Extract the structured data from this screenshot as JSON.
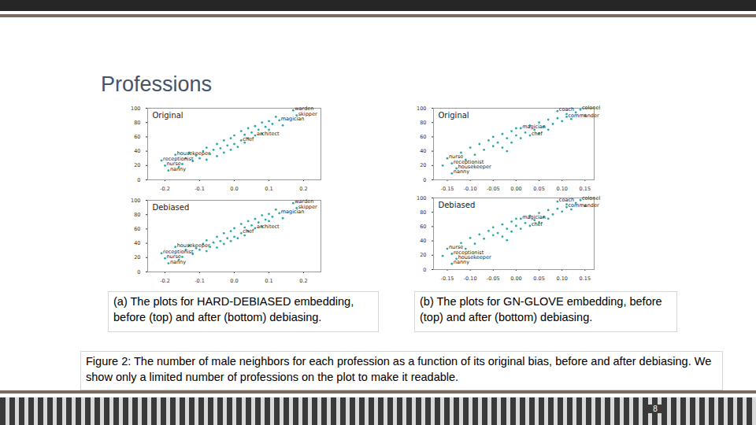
{
  "title": "Professions",
  "panel_captions": [
    "(a) The plots for HARD-DEBIASED embedding, before (top) and after (bottom) debiasing.",
    "(b) The plots for GN-GLOVE embedding, before (top) and after (bottom) debiasing."
  ],
  "caption": "Figure 2: The number of male neighbors for each profession as a function of its original bias, before and after debiasing. We show only a limited number of professions on the plot to make it readable.",
  "page_number": 8,
  "chart_data": [
    {
      "type": "scatter",
      "title": "Original",
      "color": "#2aa9a6",
      "marker": "circle",
      "xlim": [
        -0.25,
        0.25
      ],
      "xticks": [
        -0.2,
        -0.1,
        {
          "value": 0,
          "label": "0.0"
        },
        0.1,
        0.2
      ],
      "ylim": [
        0,
        100
      ],
      "yticks": [
        0,
        20,
        40,
        60,
        80,
        100
      ],
      "x": [
        -0.21,
        -0.2,
        -0.19,
        -0.17,
        -0.15,
        -0.14,
        -0.13,
        -0.12,
        -0.11,
        -0.1,
        -0.09,
        -0.08,
        -0.08,
        -0.07,
        -0.06,
        -0.05,
        -0.05,
        -0.04,
        -0.03,
        -0.03,
        -0.02,
        -0.01,
        -0.01,
        0.0,
        0.0,
        0.01,
        0.02,
        0.02,
        0.03,
        0.03,
        0.04,
        0.04,
        0.05,
        0.06,
        0.06,
        0.07,
        0.08,
        0.08,
        0.09,
        0.1,
        0.1,
        0.11,
        0.12,
        0.13,
        0.14,
        0.17,
        0.18,
        -0.16
      ],
      "values": [
        27,
        20,
        13,
        35,
        22,
        30,
        38,
        26,
        34,
        30,
        40,
        28,
        45,
        36,
        42,
        33,
        50,
        44,
        38,
        55,
        48,
        42,
        58,
        50,
        62,
        46,
        55,
        68,
        52,
        63,
        58,
        72,
        66,
        62,
        75,
        70,
        64,
        80,
        74,
        82,
        70,
        78,
        88,
        83,
        76,
        97,
        90,
        18
      ],
      "labels": [
        "receptionist",
        "nurse",
        "nanny",
        "housekeeper",
        null,
        null,
        null,
        null,
        null,
        null,
        null,
        null,
        null,
        null,
        null,
        null,
        null,
        null,
        null,
        null,
        null,
        null,
        null,
        null,
        null,
        null,
        "chef",
        null,
        null,
        null,
        null,
        null,
        null,
        "architect",
        null,
        null,
        null,
        null,
        null,
        null,
        null,
        null,
        null,
        "magician",
        null,
        "warden",
        "skipper",
        null
      ]
    },
    {
      "type": "scatter",
      "title": "Debiased",
      "color": "#2aa9a6",
      "marker": "circle",
      "xlim": [
        -0.25,
        0.25
      ],
      "xticks": [
        -0.2,
        -0.1,
        {
          "value": 0,
          "label": "0.0"
        },
        0.1,
        0.2
      ],
      "ylim": [
        0,
        100
      ],
      "yticks": [
        0,
        20,
        40,
        60,
        80,
        100
      ],
      "x": [
        -0.21,
        -0.2,
        -0.19,
        -0.17,
        -0.15,
        -0.14,
        -0.13,
        -0.12,
        -0.11,
        -0.1,
        -0.09,
        -0.08,
        -0.08,
        -0.07,
        -0.06,
        -0.05,
        -0.05,
        -0.04,
        -0.03,
        -0.03,
        -0.02,
        -0.01,
        -0.01,
        0.0,
        0.0,
        0.01,
        0.02,
        0.02,
        0.03,
        0.03,
        0.04,
        0.04,
        0.05,
        0.06,
        0.06,
        0.07,
        0.08,
        0.08,
        0.09,
        0.1,
        0.1,
        0.11,
        0.12,
        0.13,
        0.14,
        0.17,
        0.18,
        -0.16
      ],
      "values": [
        26,
        19,
        12,
        35,
        21,
        31,
        37,
        25,
        33,
        31,
        39,
        29,
        44,
        35,
        41,
        34,
        49,
        43,
        39,
        54,
        47,
        43,
        57,
        49,
        61,
        47,
        54,
        67,
        51,
        62,
        57,
        71,
        65,
        61,
        74,
        69,
        63,
        79,
        73,
        81,
        71,
        77,
        87,
        82,
        75,
        96,
        89,
        17
      ],
      "labels": [
        "receptionist",
        "nurse",
        "nanny",
        "housekeeper",
        null,
        null,
        null,
        null,
        null,
        null,
        null,
        null,
        null,
        null,
        null,
        null,
        null,
        null,
        null,
        null,
        null,
        null,
        null,
        null,
        null,
        null,
        "chef",
        null,
        null,
        null,
        null,
        null,
        null,
        "architect",
        null,
        null,
        null,
        null,
        null,
        null,
        null,
        null,
        null,
        "magician",
        null,
        "warden",
        "skipper",
        null
      ]
    },
    {
      "type": "scatter",
      "title": "Original",
      "color": "#2aa9a6",
      "marker": "circle",
      "xlim": [
        -0.18,
        0.17
      ],
      "xticks": [
        -0.15,
        {
          "value": -0.1,
          "label": "-0.10"
        },
        -0.05,
        {
          "value": 0,
          "label": "0.00"
        },
        0.05,
        {
          "value": 0.1,
          "label": "0.10"
        },
        0.15
      ],
      "ylim": [
        0,
        100
      ],
      "yticks": [
        0,
        20,
        40,
        60,
        80,
        100
      ],
      "x": [
        -0.15,
        -0.14,
        -0.13,
        -0.14,
        -0.12,
        -0.11,
        -0.1,
        -0.09,
        -0.08,
        -0.07,
        -0.06,
        -0.05,
        -0.05,
        -0.04,
        -0.03,
        -0.03,
        -0.02,
        -0.01,
        -0.01,
        0.0,
        0.0,
        0.01,
        0.01,
        0.02,
        0.03,
        0.03,
        0.04,
        0.05,
        0.05,
        0.06,
        0.07,
        0.07,
        0.08,
        0.09,
        0.09,
        0.1,
        0.11,
        0.11,
        0.12,
        0.13,
        0.14,
        0.15,
        -0.16,
        -0.02
      ],
      "values": [
        30,
        23,
        16,
        9,
        38,
        28,
        45,
        35,
        50,
        42,
        55,
        47,
        60,
        52,
        64,
        45,
        58,
        68,
        52,
        62,
        72,
        72,
        58,
        66,
        62,
        76,
        70,
        80,
        65,
        74,
        84,
        70,
        78,
        96,
        86,
        82,
        88,
        92,
        85,
        94,
        98,
        90,
        20,
        40
      ],
      "labels": [
        "nurse",
        "receptionist",
        "housekeeper",
        "nanny",
        null,
        null,
        null,
        null,
        null,
        null,
        null,
        null,
        null,
        null,
        null,
        null,
        null,
        null,
        null,
        null,
        null,
        "magician",
        null,
        null,
        "chef",
        null,
        null,
        null,
        null,
        null,
        null,
        null,
        null,
        "coach",
        null,
        null,
        "commander",
        null,
        null,
        null,
        "colonel",
        null,
        null,
        null
      ]
    },
    {
      "type": "scatter",
      "title": "Debiased",
      "color": "#2aa9a6",
      "marker": "circle",
      "xlim": [
        -0.18,
        0.17
      ],
      "xticks": [
        -0.15,
        {
          "value": -0.1,
          "label": "-0.10"
        },
        -0.05,
        {
          "value": 0,
          "label": "0.00"
        },
        0.05,
        {
          "value": 0.1,
          "label": "0.10"
        },
        0.15
      ],
      "ylim": [
        0,
        100
      ],
      "yticks": [
        0,
        20,
        40,
        60,
        80,
        100
      ],
      "x": [
        -0.15,
        -0.14,
        -0.13,
        -0.14,
        -0.12,
        -0.11,
        -0.1,
        -0.09,
        -0.08,
        -0.07,
        -0.06,
        -0.05,
        -0.05,
        -0.04,
        -0.03,
        -0.03,
        -0.02,
        -0.01,
        -0.01,
        0.0,
        0.0,
        0.01,
        0.01,
        0.02,
        0.03,
        0.03,
        0.04,
        0.05,
        0.05,
        0.06,
        0.07,
        0.07,
        0.08,
        0.09,
        0.09,
        0.1,
        0.11,
        0.11,
        0.12,
        0.13,
        0.14,
        0.15,
        -0.16,
        -0.02
      ],
      "values": [
        29,
        22,
        15,
        8,
        37,
        29,
        44,
        36,
        49,
        43,
        54,
        48,
        59,
        51,
        63,
        46,
        57,
        67,
        53,
        61,
        71,
        71,
        57,
        65,
        61,
        75,
        69,
        79,
        66,
        73,
        83,
        71,
        77,
        95,
        85,
        81,
        87,
        91,
        84,
        93,
        97,
        89,
        19,
        41
      ],
      "labels": [
        "nurse",
        "receptionist",
        "housekeeper",
        "nanny",
        null,
        null,
        null,
        null,
        null,
        null,
        null,
        null,
        null,
        null,
        null,
        null,
        null,
        null,
        null,
        null,
        null,
        "magician",
        null,
        null,
        "chef",
        null,
        null,
        null,
        null,
        null,
        null,
        null,
        null,
        "coach",
        null,
        null,
        "commander",
        null,
        null,
        null,
        "colonel",
        null,
        null,
        null
      ]
    }
  ]
}
